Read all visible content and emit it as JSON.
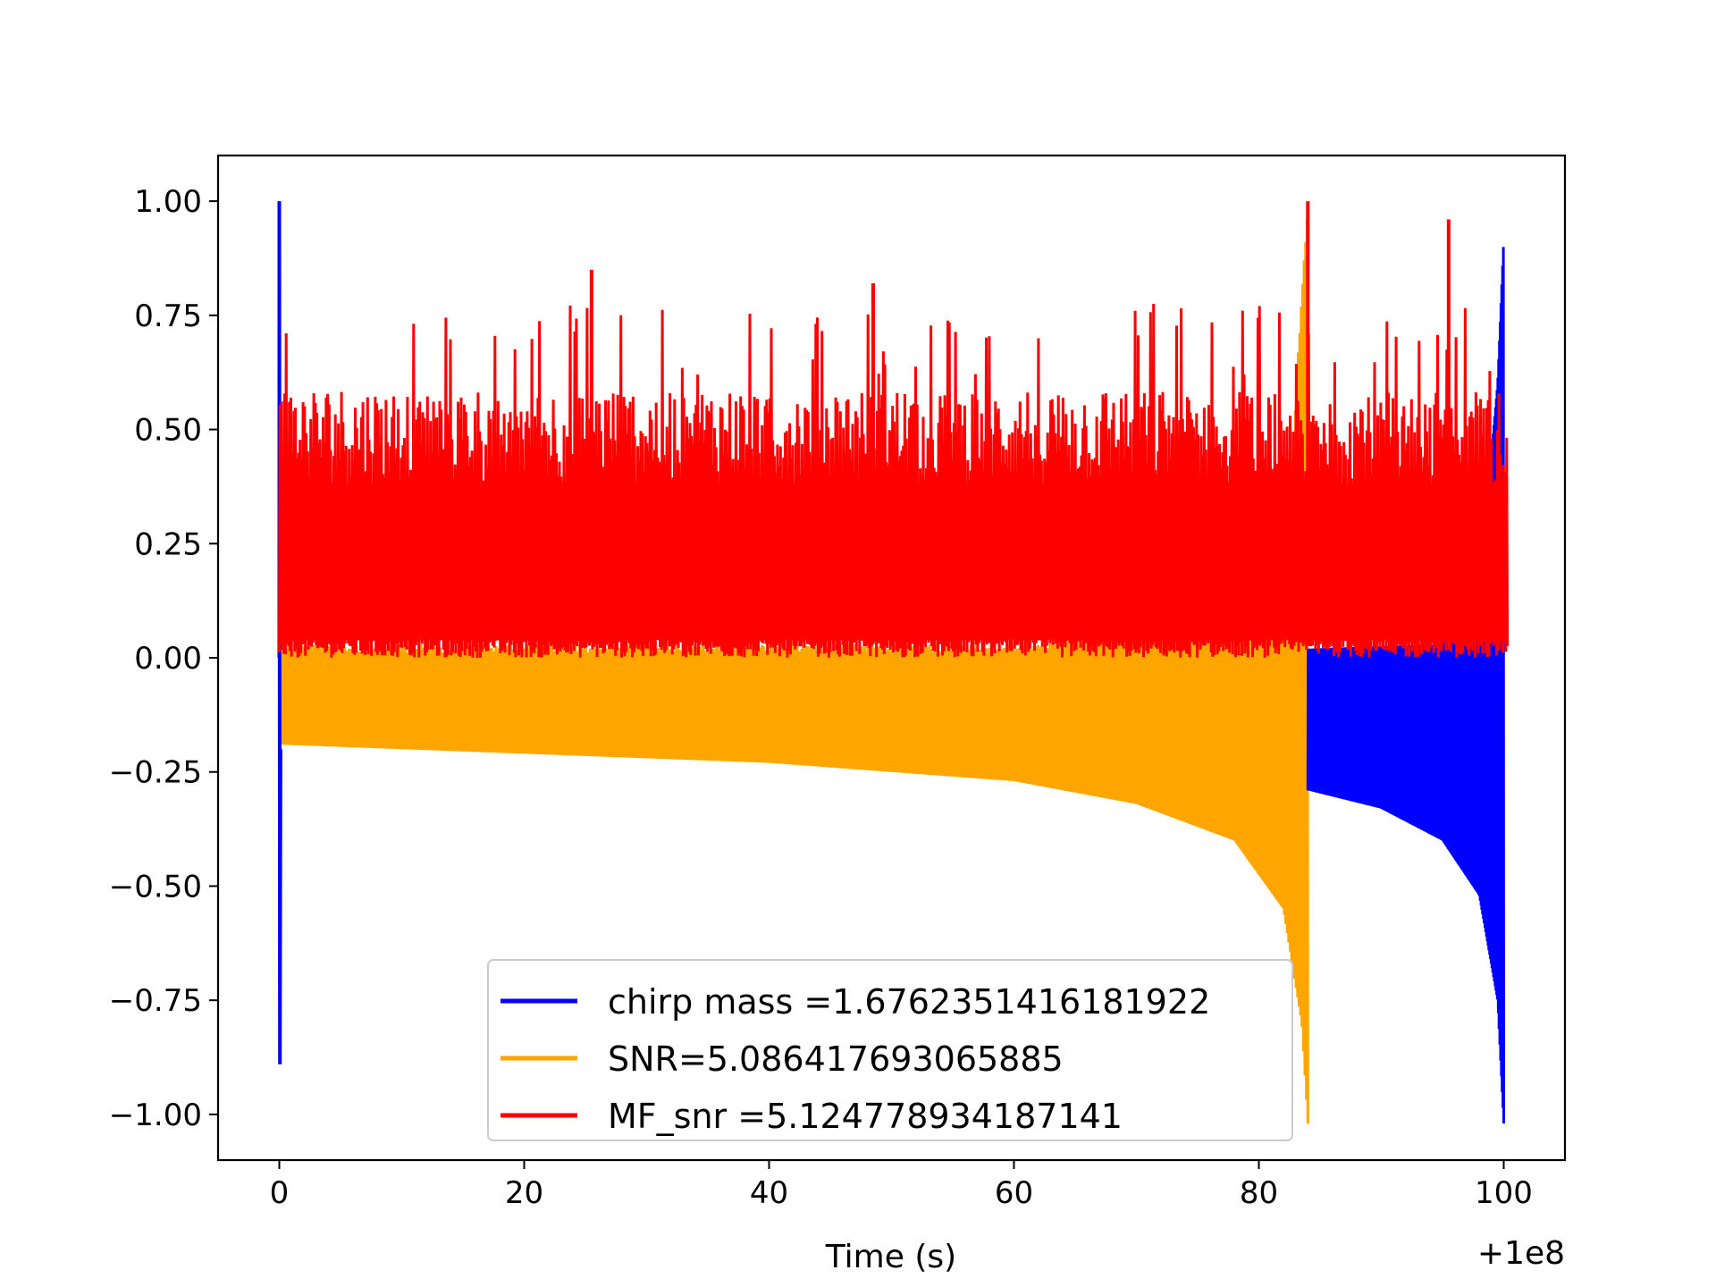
{
  "chart_data": {
    "type": "line",
    "title": "",
    "xlabel": "Time (s)",
    "ylabel": "",
    "x_offset_label": "+1e8",
    "xlim": [
      -5,
      105
    ],
    "ylim": [
      -1.1,
      1.1
    ],
    "xticks": [
      0,
      20,
      40,
      60,
      80,
      100
    ],
    "xtick_labels": [
      "0",
      "20",
      "40",
      "60",
      "80",
      "100"
    ],
    "yticks": [
      1.0,
      0.75,
      0.5,
      0.25,
      0.0,
      -0.25,
      -0.5,
      -0.75,
      -1.0
    ],
    "ytick_labels": [
      "1.00",
      "0.75",
      "0.50",
      "0.25",
      "0.00",
      "−0.25",
      "−0.50",
      "−0.75",
      "−1.00"
    ],
    "grid": false,
    "legend_position": "lower-center",
    "series": [
      {
        "name": "chirp mass =1.6762351416181922",
        "color": "#0000ff",
        "description": "chirp waveform",
        "key_points": {
          "start_spike_max": 1.0,
          "start_spike_min": -0.89,
          "lower_envelope": [
            [
              84,
              -0.29
            ],
            [
              90,
              -0.33
            ],
            [
              95,
              -0.4
            ],
            [
              98,
              -0.52
            ],
            [
              99.5,
              -0.75
            ],
            [
              100,
              -1.02
            ]
          ],
          "upper_envelope": [
            [
              84,
              0.02
            ],
            [
              95,
              0.03
            ],
            [
              98.5,
              0.3
            ],
            [
              99.5,
              0.6
            ],
            [
              100,
              0.92
            ]
          ]
        }
      },
      {
        "name": "SNR=5.086417693065885",
        "color": "#ffa500",
        "description": "chirp waveform",
        "key_points": {
          "lower_envelope": [
            [
              0,
              -0.19
            ],
            [
              20,
              -0.21
            ],
            [
              40,
              -0.23
            ],
            [
              60,
              -0.27
            ],
            [
              70,
              -0.32
            ],
            [
              78,
              -0.4
            ],
            [
              82,
              -0.55
            ],
            [
              83.5,
              -0.8
            ],
            [
              84,
              -1.02
            ]
          ],
          "upper_envelope": [
            [
              0,
              0.03
            ],
            [
              60,
              0.03
            ],
            [
              82,
              0.1
            ],
            [
              83.5,
              0.8
            ],
            [
              84,
              1.0
            ]
          ]
        }
      },
      {
        "name": "MF_snr =5.124778934187141",
        "color": "#ff0000",
        "description": "noisy matched filter output",
        "key_points": {
          "baseline_min": 0.0,
          "typical_max": 0.6,
          "peaks": [
            [
              84,
              1.0
            ],
            [
              95.5,
              0.96
            ],
            [
              25.5,
              0.85
            ],
            [
              48.5,
              0.82
            ]
          ]
        }
      }
    ]
  }
}
